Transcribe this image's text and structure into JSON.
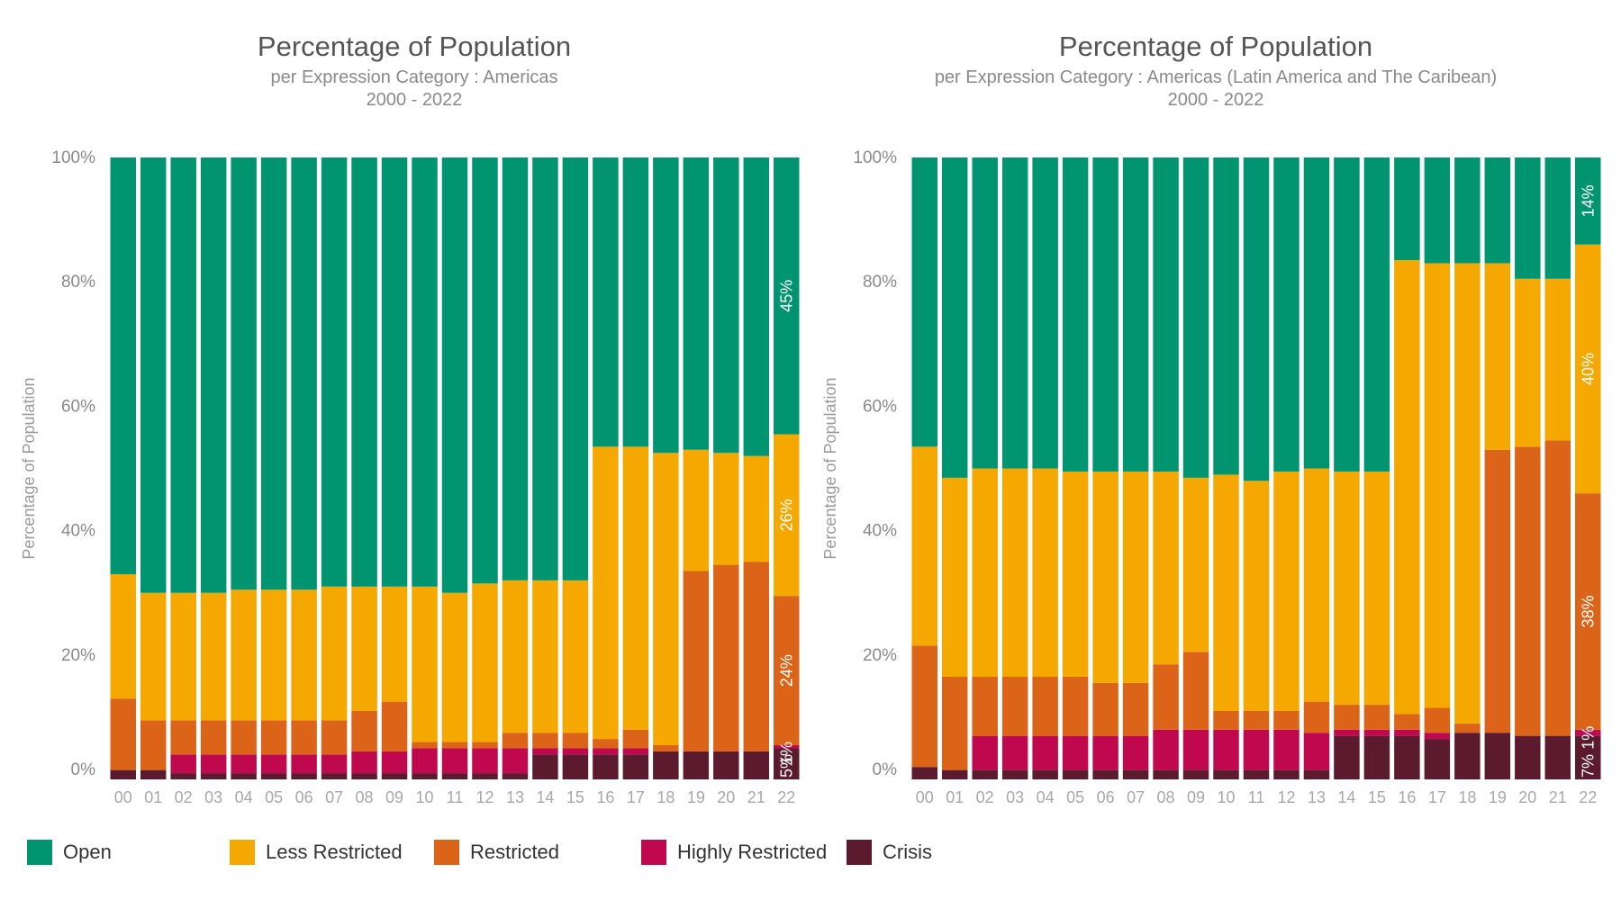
{
  "chart_data": [
    {
      "type": "bar",
      "stacked": true,
      "normalized": true,
      "title": "Percentage of Population",
      "subtitle": "per Expression Category : Americas",
      "years": "2000 - 2022",
      "ylabel": "Percentage of Population",
      "xlabel": "",
      "ylim": [
        0,
        100
      ],
      "y_ticks": [
        "100%",
        "80%",
        "60%",
        "40%",
        "20%",
        "0%"
      ],
      "categories": [
        "00",
        "01",
        "02",
        "03",
        "04",
        "05",
        "06",
        "07",
        "08",
        "09",
        "10",
        "11",
        "12",
        "13",
        "14",
        "15",
        "16",
        "17",
        "18",
        "19",
        "20",
        "21",
        "22"
      ],
      "series": [
        {
          "name": "Crisis",
          "color": "#5c1a2e",
          "values": [
            1.5,
            1.5,
            1,
            1,
            1,
            1,
            1,
            1,
            1,
            1,
            1,
            1,
            1,
            1,
            4,
            4,
            4,
            4,
            4.5,
            4.5,
            4.5,
            4.5,
            5
          ]
        },
        {
          "name": "Highly Restricted",
          "color": "#c0084f",
          "values": [
            0,
            0,
            3,
            3,
            3,
            3,
            3,
            3,
            3.5,
            3.5,
            4,
            4,
            4,
            4,
            1,
            1,
            1,
            1,
            0,
            0,
            0,
            0,
            0.5
          ]
        },
        {
          "name": "Restricted",
          "color": "#dc6418",
          "values": [
            11.5,
            8,
            5.5,
            5.5,
            5.5,
            5.5,
            5.5,
            5.5,
            6.5,
            8,
            1,
            1,
            1,
            2.5,
            2.5,
            2.5,
            1.5,
            3,
            1,
            29,
            30,
            30.5,
            24
          ]
        },
        {
          "name": "Less Restricted",
          "color": "#f5a800",
          "values": [
            20,
            20.5,
            20.5,
            20.5,
            21,
            21,
            21,
            21.5,
            20,
            18.5,
            25,
            24,
            25.5,
            24.5,
            24.5,
            24.5,
            47,
            45.5,
            47,
            19.5,
            18,
            17,
            26
          ]
        },
        {
          "name": "Open",
          "color": "#009470",
          "values": [
            67,
            70,
            70,
            70,
            69.5,
            69.5,
            69.5,
            69,
            69,
            69,
            69,
            70,
            68.5,
            68,
            68,
            68,
            46.5,
            46.5,
            47.5,
            47,
            47.5,
            48,
            44.5
          ]
        }
      ],
      "data_labels": [
        {
          "series": "Open",
          "category": "22",
          "text": "45%"
        },
        {
          "series": "Less Restricted",
          "category": "22",
          "text": "26%"
        },
        {
          "series": "Restricted",
          "category": "22",
          "text": "24%"
        },
        {
          "series": "Highly Restricted",
          "category": "22",
          "text": "1%"
        },
        {
          "series": "Crisis",
          "category": "22",
          "text": "5%"
        }
      ]
    },
    {
      "type": "bar",
      "stacked": true,
      "normalized": true,
      "title": "Percentage of Population",
      "subtitle": "per Expression Category : Americas (Latin America and The Caribean)",
      "years": "2000 - 2022",
      "ylabel": "Percentage of Population",
      "xlabel": "",
      "ylim": [
        0,
        100
      ],
      "y_ticks": [
        "100%",
        "80%",
        "60%",
        "40%",
        "20%",
        "0%"
      ],
      "categories": [
        "00",
        "01",
        "02",
        "03",
        "04",
        "05",
        "06",
        "07",
        "08",
        "09",
        "10",
        "11",
        "12",
        "13",
        "14",
        "15",
        "16",
        "17",
        "18",
        "19",
        "20",
        "21",
        "22"
      ],
      "series": [
        {
          "name": "Crisis",
          "color": "#5c1a2e",
          "values": [
            2,
            1.5,
            1.5,
            1.5,
            1.5,
            1.5,
            1.5,
            1.5,
            1.5,
            1.5,
            1.5,
            1.5,
            1.5,
            1.5,
            7,
            7,
            7,
            6.5,
            7.5,
            7.5,
            7,
            7,
            7
          ]
        },
        {
          "name": "Highly Restricted",
          "color": "#c0084f",
          "values": [
            0,
            0,
            5.5,
            5.5,
            5.5,
            5.5,
            5.5,
            5.5,
            6.5,
            6.5,
            6.5,
            6.5,
            6.5,
            6,
            1,
            1,
            1,
            1,
            0,
            0,
            0,
            0,
            1
          ]
        },
        {
          "name": "Restricted",
          "color": "#dc6418",
          "values": [
            19.5,
            15,
            9.5,
            9.5,
            9.5,
            9.5,
            8.5,
            8.5,
            10.5,
            12.5,
            3,
            3,
            3,
            5,
            4,
            4,
            2.5,
            4,
            1.5,
            45.5,
            46.5,
            47.5,
            38
          ]
        },
        {
          "name": "Less Restricted",
          "color": "#f5a800",
          "values": [
            32,
            32,
            33.5,
            33.5,
            33.5,
            33,
            34,
            34,
            31,
            28,
            38,
            37,
            38.5,
            37.5,
            37.5,
            37.5,
            73,
            71.5,
            74,
            30,
            27,
            26,
            40
          ]
        },
        {
          "name": "Open",
          "color": "#009470",
          "values": [
            46.5,
            51.5,
            50,
            50,
            50,
            50.5,
            50.5,
            50.5,
            50.5,
            51.5,
            51,
            52,
            50.5,
            50,
            50.5,
            50.5,
            16.5,
            17,
            17,
            17,
            19.5,
            19.5,
            14
          ]
        }
      ],
      "data_labels": [
        {
          "series": "Open",
          "category": "22",
          "text": "14%"
        },
        {
          "series": "Less Restricted",
          "category": "22",
          "text": "40%"
        },
        {
          "series": "Restricted",
          "category": "22",
          "text": "38%"
        },
        {
          "series": "Highly Restricted",
          "category": "22",
          "text": "1%"
        },
        {
          "series": "Crisis",
          "category": "22",
          "text": "7%"
        }
      ]
    }
  ],
  "legend": [
    {
      "label": "Open",
      "color": "#009470"
    },
    {
      "label": "Less Restricted",
      "color": "#f5a800"
    },
    {
      "label": "Restricted",
      "color": "#dc6418"
    },
    {
      "label": "Highly Restricted",
      "color": "#c0084f"
    },
    {
      "label": "Crisis",
      "color": "#5c1a2e"
    }
  ]
}
